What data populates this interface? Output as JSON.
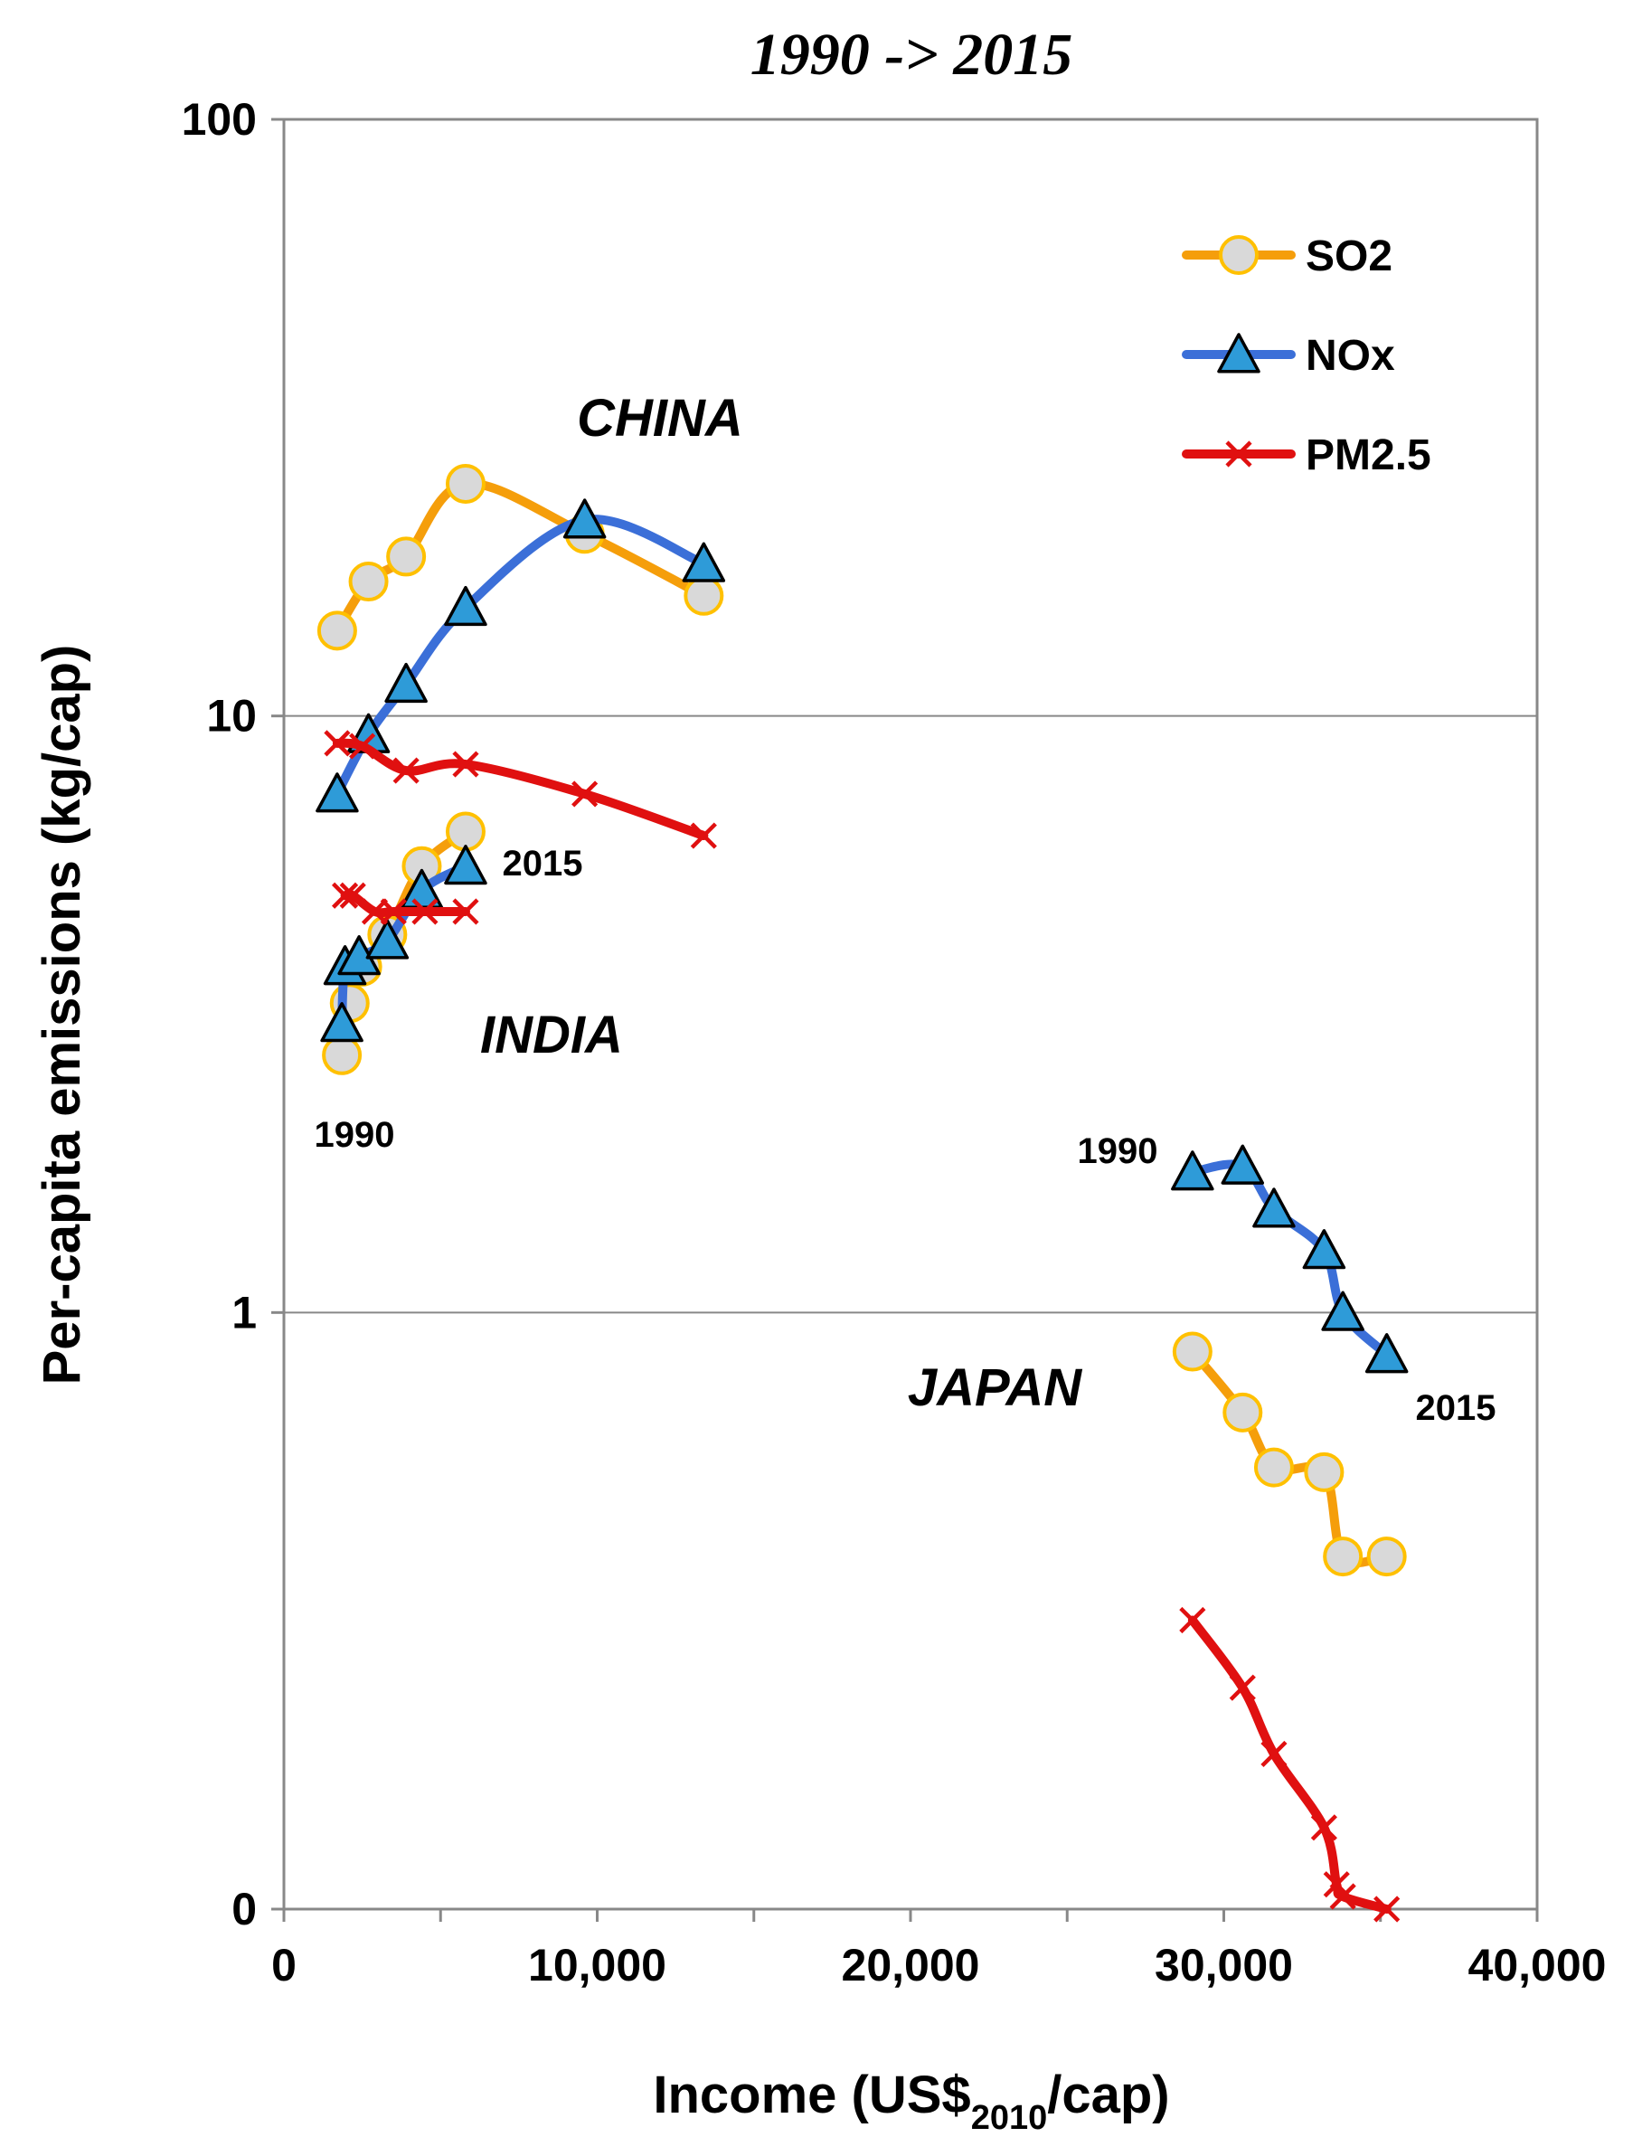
{
  "chart_data": {
    "type": "line",
    "title": "1990 -> 2015",
    "xlabel_main": "Income (US$",
    "xlabel_sub": "2010",
    "xlabel_end": "/cap)",
    "ylabel": "Per-capita emissions (kg/cap)",
    "xlim": [
      0,
      40000
    ],
    "ylim_log10": [
      -1,
      2
    ],
    "x_ticks": [
      0,
      10000,
      20000,
      30000,
      40000
    ],
    "x_tick_labels": [
      "0",
      "10,000",
      "20,000",
      "30,000",
      "40,000"
    ],
    "y_ticks": [
      0.1,
      1,
      10,
      100
    ],
    "y_tick_labels": [
      "0",
      "1",
      "10",
      "100"
    ],
    "grid": "horizontal",
    "legend_position": "top-right",
    "legend": [
      {
        "name": "SO2",
        "color": "#F59E0B",
        "marker": "circle"
      },
      {
        "name": "NOx",
        "color": "#3B6FD8",
        "marker": "triangle"
      },
      {
        "name": "PM2.5",
        "color": "#E01010",
        "marker": "x"
      }
    ],
    "regions": [
      {
        "name": "CHINA"
      },
      {
        "name": "INDIA",
        "start_label": "1990",
        "end_label": "2015"
      },
      {
        "name": "JAPAN",
        "start_label": "1990",
        "end_label": "2015"
      }
    ],
    "series": [
      {
        "region": "CHINA",
        "name": "SO2",
        "x": [
          1700,
          2700,
          3900,
          5800,
          9600,
          13400
        ],
        "y": [
          13.9,
          16.8,
          18.5,
          24.5,
          20.2,
          15.9
        ]
      },
      {
        "region": "CHINA",
        "name": "NOx",
        "x": [
          1700,
          2700,
          3900,
          5800,
          9600,
          13400
        ],
        "y": [
          7.4,
          9.3,
          11.3,
          15.2,
          21.3,
          18.0
        ]
      },
      {
        "region": "CHINA",
        "name": "PM2.5",
        "x": [
          1700,
          2500,
          3900,
          5800,
          9600,
          13400
        ],
        "y": [
          9.0,
          8.9,
          8.1,
          8.3,
          7.4,
          6.3
        ]
      },
      {
        "region": "INDIA",
        "name": "SO2",
        "x": [
          1850,
          2100,
          2500,
          3300,
          4400,
          5800
        ],
        "y": [
          2.7,
          3.3,
          3.8,
          4.3,
          5.6,
          6.4
        ]
      },
      {
        "region": "INDIA",
        "name": "NOx",
        "x": [
          1850,
          1950,
          2400,
          3300,
          4400,
          5800
        ],
        "y": [
          3.05,
          3.8,
          3.95,
          4.2,
          5.1,
          5.6
        ]
      },
      {
        "region": "INDIA",
        "name": "PM2.5",
        "x": [
          1950,
          2200,
          2900,
          3500,
          4500,
          5800
        ],
        "y": [
          5.0,
          5.0,
          4.7,
          4.7,
          4.7,
          4.7
        ]
      },
      {
        "region": "JAPAN",
        "name": "SO2",
        "x": [
          29000,
          30600,
          31600,
          33200,
          33800,
          35200
        ],
        "y": [
          0.86,
          0.68,
          0.55,
          0.54,
          0.39,
          0.39
        ]
      },
      {
        "region": "JAPAN",
        "name": "NOx",
        "x": [
          29000,
          30600,
          31600,
          33200,
          33800,
          35200
        ],
        "y": [
          1.72,
          1.76,
          1.49,
          1.27,
          1.0,
          0.85
        ]
      },
      {
        "region": "JAPAN",
        "name": "PM2.5",
        "x": [
          29000,
          30600,
          31600,
          33200,
          33600,
          33800,
          35200
        ],
        "y": [
          0.305,
          0.235,
          0.182,
          0.137,
          0.11,
          0.105,
          0.1
        ]
      }
    ]
  }
}
